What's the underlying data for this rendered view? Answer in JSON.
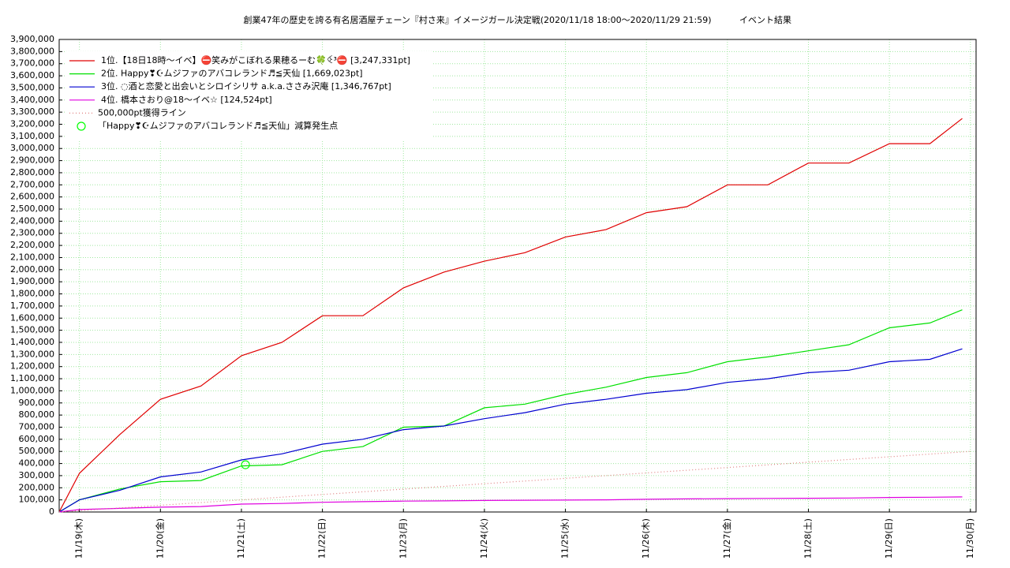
{
  "chart_data": {
    "type": "line",
    "title": "創業47年の歴史を誇る有名居酒屋チェーン『村さ来』イメージガール決定戦(2020/11/18 18:00〜2020/11/29 21:59)",
    "subtitle": "イベント結果",
    "x": [
      18.75,
      19.0,
      19.5,
      20.0,
      20.5,
      21.0,
      21.5,
      22.0,
      22.5,
      23.0,
      23.5,
      24.0,
      24.5,
      25.0,
      25.5,
      26.0,
      26.5,
      27.0,
      27.5,
      28.0,
      28.5,
      29.0,
      29.5,
      29.9
    ],
    "series": [
      {
        "name": "1位.【18日18時〜イベ】⛔笑みがこぼれる果穂るーむ🍀ꒊ³⛔ [3,247,331pt]",
        "color": "#e00000",
        "values": [
          0,
          320000,
          640000,
          930000,
          1040000,
          1290000,
          1400000,
          1620000,
          1620000,
          1850000,
          1980000,
          2070000,
          2140000,
          2270000,
          2330000,
          2470000,
          2520000,
          2700000,
          2700000,
          2880000,
          2880000,
          3040000,
          3040000,
          3247331
        ]
      },
      {
        "name": "2位. Happy❣☪ムジファのアバコレランド♬≦天仙 [1,669,023pt]",
        "color": "#00e000",
        "values": [
          0,
          100000,
          190000,
          250000,
          260000,
          380000,
          390000,
          500000,
          540000,
          700000,
          710000,
          860000,
          890000,
          970000,
          1030000,
          1110000,
          1150000,
          1240000,
          1280000,
          1330000,
          1380000,
          1520000,
          1560000,
          1669023
        ]
      },
      {
        "name": "3位. ◌酒と恋愛と出会いとシロイシリサ a.k.a.ささみ沢庵 [1,346,767pt]",
        "color": "#0000d0",
        "values": [
          0,
          100000,
          180000,
          290000,
          330000,
          430000,
          480000,
          560000,
          600000,
          680000,
          710000,
          770000,
          820000,
          890000,
          930000,
          980000,
          1010000,
          1070000,
          1100000,
          1150000,
          1170000,
          1240000,
          1260000,
          1346767
        ]
      },
      {
        "name": "4位. 橋本さおり@18〜イベ☆ [124,524pt]",
        "color": "#e000e0",
        "values": [
          0,
          20000,
          30000,
          40000,
          45000,
          65000,
          70000,
          80000,
          85000,
          90000,
          92000,
          95000,
          97000,
          98000,
          100000,
          105000,
          108000,
          110000,
          112000,
          113000,
          115000,
          120000,
          122000,
          124524
        ]
      },
      {
        "name": "500,000pt獲得ライン",
        "color": "#e08080",
        "style": "dotted",
        "x": [
          18.75,
          30.0
        ],
        "values": [
          0,
          500000
        ]
      },
      {
        "name": "「Happy❣☪ムジファのアバコレランド♬≦天仙」減算発生点",
        "color": "#00ff00",
        "style": "marker",
        "x": [
          21.05
        ],
        "values": [
          390000
        ]
      }
    ],
    "xlim": [
      18.75,
      30.07
    ],
    "xticks": [
      {
        "value": 19,
        "label": "11/19(木)"
      },
      {
        "value": 20,
        "label": "11/20(金)"
      },
      {
        "value": 21,
        "label": "11/21(土)"
      },
      {
        "value": 22,
        "label": "11/22(日)"
      },
      {
        "value": 23,
        "label": "11/23(月)"
      },
      {
        "value": 24,
        "label": "11/24(火)"
      },
      {
        "value": 25,
        "label": "11/25(水)"
      },
      {
        "value": 26,
        "label": "11/26(木)"
      },
      {
        "value": 27,
        "label": "11/27(金)"
      },
      {
        "value": 28,
        "label": "11/28(土)"
      },
      {
        "value": 29,
        "label": "11/29(日)"
      },
      {
        "value": 30,
        "label": "11/30(月)"
      }
    ],
    "ylim": [
      0,
      3900000
    ],
    "yticks": [
      0,
      {
        "value": 100000,
        "label": "100,000"
      },
      {
        "value": 200000,
        "label": "200,000"
      },
      {
        "value": 300000,
        "label": "300,000"
      },
      {
        "value": 400000,
        "label": "400,000"
      },
      {
        "value": 500000,
        "label": "500,000"
      },
      {
        "value": 600000,
        "label": "600,000"
      },
      {
        "value": 700000,
        "label": "700,000"
      },
      {
        "value": 800000,
        "label": "800,000"
      },
      {
        "value": 900000,
        "label": "900,000"
      },
      {
        "value": 1000000,
        "label": "1,000,000"
      },
      {
        "value": 1100000,
        "label": "1,100,000"
      },
      {
        "value": 1200000,
        "label": "1,200,000"
      },
      {
        "value": 1300000,
        "label": "1,300,000"
      },
      {
        "value": 1400000,
        "label": "1,400,000"
      },
      {
        "value": 1500000,
        "label": "1,500,000"
      },
      {
        "value": 1600000,
        "label": "1,600,000"
      },
      {
        "value": 1700000,
        "label": "1,700,000"
      },
      {
        "value": 1800000,
        "label": "1,800,000"
      },
      {
        "value": 1900000,
        "label": "1,900,000"
      },
      {
        "value": 2000000,
        "label": "2,000,000"
      },
      {
        "value": 2100000,
        "label": "2,100,000"
      },
      {
        "value": 2200000,
        "label": "2,200,000"
      },
      {
        "value": 2300000,
        "label": "2,300,000"
      },
      {
        "value": 2400000,
        "label": "2,400,000"
      },
      {
        "value": 2500000,
        "label": "2,500,000"
      },
      {
        "value": 2600000,
        "label": "2,600,000"
      },
      {
        "value": 2700000,
        "label": "2,700,000"
      },
      {
        "value": 2800000,
        "label": "2,800,000"
      },
      {
        "value": 2900000,
        "label": "2,900,000"
      },
      {
        "value": 3000000,
        "label": "3,000,000"
      },
      {
        "value": 3100000,
        "label": "3,100,000"
      },
      {
        "value": 3200000,
        "label": "3,200,000"
      },
      {
        "value": 3300000,
        "label": "3,300,000"
      },
      {
        "value": 3400000,
        "label": "3,400,000"
      },
      {
        "value": 3500000,
        "label": "3,500,000"
      },
      {
        "value": 3600000,
        "label": "3,600,000"
      },
      {
        "value": 3700000,
        "label": "3,700,000"
      },
      {
        "value": 3800000,
        "label": "3,800,000"
      },
      {
        "value": 3900000,
        "label": "3,900,000"
      }
    ],
    "grid": true,
    "grid_color": "#a0e8a0",
    "legend": "upper left"
  }
}
